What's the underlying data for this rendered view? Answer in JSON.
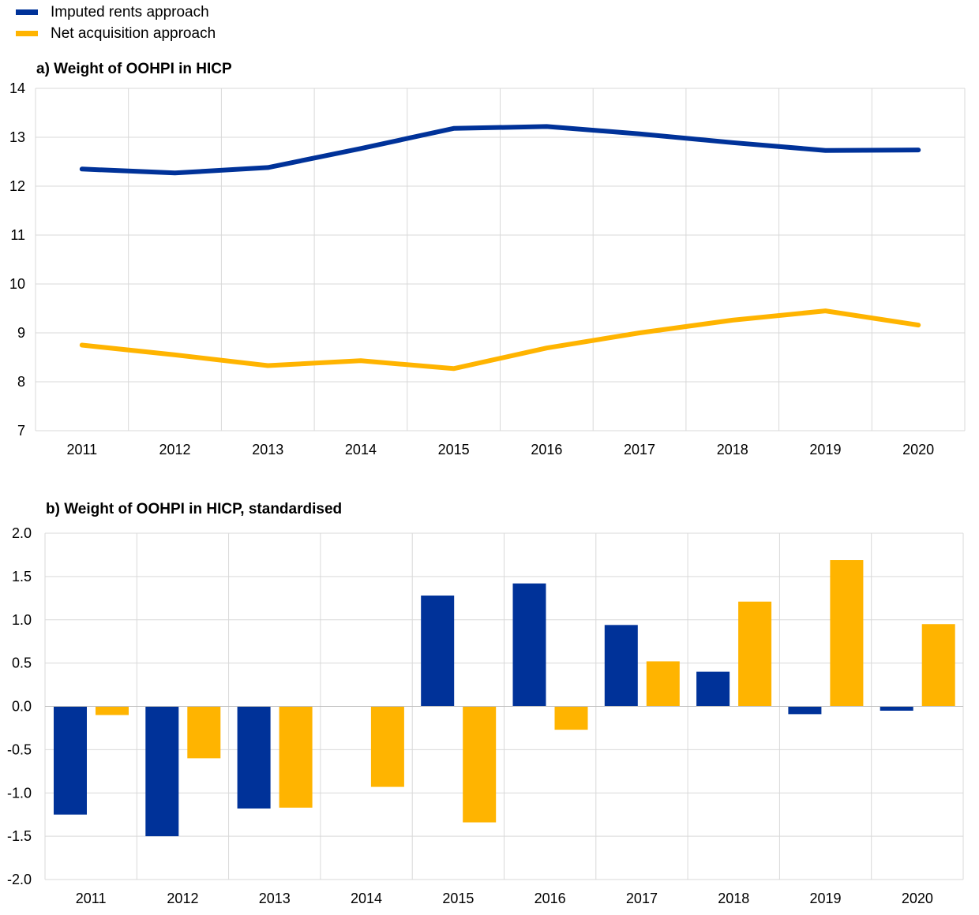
{
  "legend": {
    "items": [
      {
        "label": "Imputed rents approach",
        "color": "#003299"
      },
      {
        "label": "Net acquisition approach",
        "color": "#FFB400"
      }
    ]
  },
  "chart_data": [
    {
      "type": "line",
      "title": "a) Weight of OOHPI in HICP",
      "categories": [
        "2011",
        "2012",
        "2013",
        "2014",
        "2015",
        "2016",
        "2017",
        "2018",
        "2019",
        "2020"
      ],
      "ylim": [
        7,
        14
      ],
      "yticks": [
        "7",
        "8",
        "9",
        "10",
        "11",
        "12",
        "13",
        "14"
      ],
      "grid": true,
      "series": [
        {
          "name": "Imputed rents approach",
          "color": "#003299",
          "values": [
            12.35,
            12.27,
            12.38,
            12.77,
            13.18,
            13.22,
            13.07,
            12.89,
            12.73,
            12.74
          ]
        },
        {
          "name": "Net acquisition approach",
          "color": "#FFB400",
          "values": [
            8.75,
            8.55,
            8.33,
            8.43,
            8.27,
            8.69,
            9.0,
            9.26,
            9.45,
            9.16
          ]
        }
      ]
    },
    {
      "type": "bar",
      "title": "b) Weight of OOHPI in HICP, standardised",
      "categories": [
        "2011",
        "2012",
        "2013",
        "2014",
        "2015",
        "2016",
        "2017",
        "2018",
        "2019",
        "2020"
      ],
      "ylim": [
        -2.0,
        2.0
      ],
      "yticks": [
        "-2.0",
        "-1.5",
        "-1.0",
        "-0.5",
        "0.0",
        "0.5",
        "1.0",
        "1.5",
        "2.0"
      ],
      "grid": true,
      "series": [
        {
          "name": "Imputed rents approach",
          "color": "#003299",
          "values": [
            -1.25,
            -1.5,
            -1.18,
            0.0,
            1.28,
            1.42,
            0.94,
            0.4,
            -0.09,
            -0.05
          ]
        },
        {
          "name": "Net acquisition approach",
          "color": "#FFB400",
          "values": [
            -0.1,
            -0.6,
            -1.17,
            -0.93,
            -1.34,
            -0.27,
            0.52,
            1.21,
            1.69,
            0.95
          ]
        }
      ]
    }
  ]
}
